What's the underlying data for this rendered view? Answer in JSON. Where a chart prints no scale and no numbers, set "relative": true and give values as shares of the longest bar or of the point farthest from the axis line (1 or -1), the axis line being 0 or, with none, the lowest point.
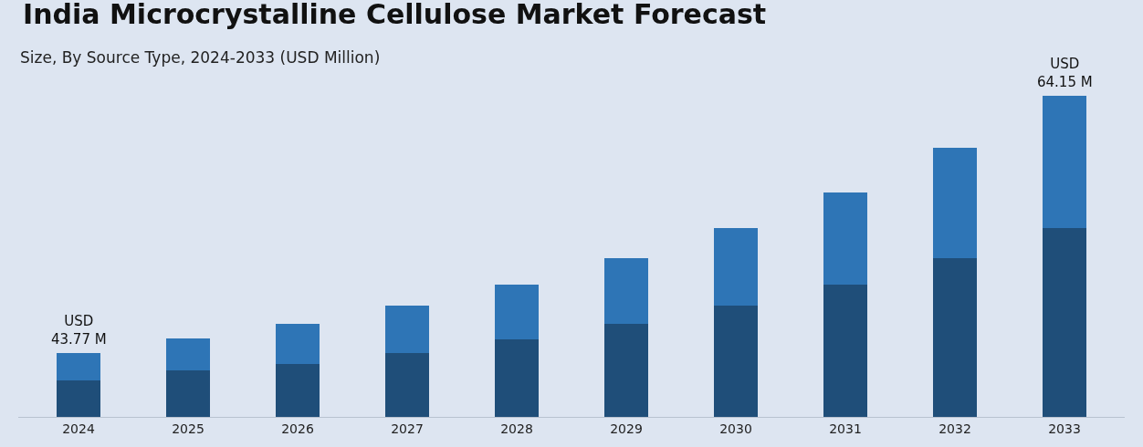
{
  "chart_data": {
    "type": "bar",
    "title": "India Microcrystalline Cellulose Market Forecast",
    "subtitle": "Size, By Source Type, 2024-2033 (USD Million)",
    "categories": [
      "2024",
      "2025",
      "2026",
      "2027",
      "2028",
      "2029",
      "2030",
      "2031",
      "2032",
      "2033"
    ],
    "relative": true,
    "stacked": true,
    "grid": false,
    "series": [
      {
        "color": "#1f4e79",
        "values": [
          0.115,
          0.144,
          0.166,
          0.2,
          0.242,
          0.29,
          0.346,
          0.411,
          0.493,
          0.589
        ]
      },
      {
        "color": "#2e75b6",
        "values": [
          0.085,
          0.099,
          0.124,
          0.146,
          0.169,
          0.203,
          0.242,
          0.287,
          0.346,
          0.411
        ]
      }
    ],
    "totals": [
      "USD\n43.77 M",
      null,
      null,
      null,
      null,
      null,
      null,
      null,
      null,
      "USD\n64.15 M"
    ]
  }
}
